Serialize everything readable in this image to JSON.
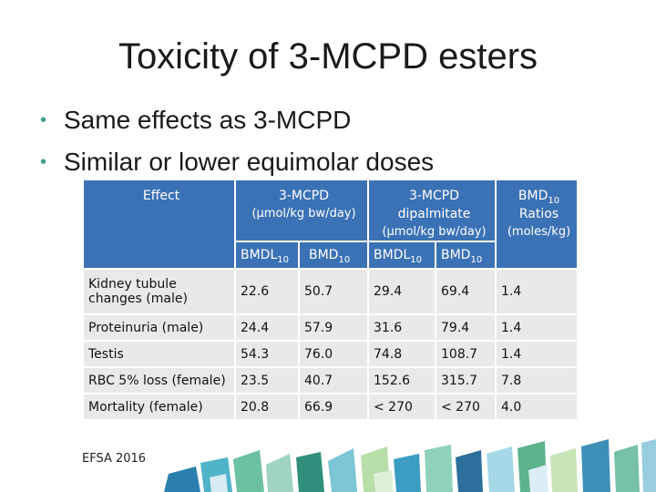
{
  "slide": {
    "title": "Toxicity of 3-MCPD esters",
    "bullets": [
      "Same effects as 3-MCPD",
      "Similar or lower equimolar doses"
    ],
    "footer": "EFSA 2016"
  },
  "table": {
    "header": {
      "effect": "Effect",
      "mcpd": "3-MCPD",
      "mcpd_unit": "(μmol/kg bw/day)",
      "dip_line1": "3-MCPD",
      "dip_line2": "dipalmitate",
      "dip_unit": "(μmol/kg bw/day)",
      "ratio_main": "BMD",
      "ratio_sub": "10",
      "ratio_line2": "Ratios",
      "ratio_unit": "(moles/kg)",
      "bmdl": "BMDL",
      "bmd": "BMD",
      "sub10": "10"
    },
    "rows": [
      {
        "effect": "Kidney tubule changes (male)",
        "m_bmdl": "22.6",
        "m_bmd": "50.7",
        "d_bmdl": "29.4",
        "d_bmd": "69.4",
        "ratio": "1.4"
      },
      {
        "effect": "Proteinuria (male)",
        "m_bmdl": "24.4",
        "m_bmd": "57.9",
        "d_bmdl": "31.6",
        "d_bmd": "79.4",
        "ratio": "1.4"
      },
      {
        "effect": "Testis",
        "m_bmdl": "54.3",
        "m_bmd": "76.0",
        "d_bmdl": "74.8",
        "d_bmd": "108.7",
        "ratio": "1.4"
      },
      {
        "effect": "RBC 5% loss (female)",
        "m_bmdl": "23.5",
        "m_bmd": "40.7",
        "d_bmdl": "152.6",
        "d_bmd": "315.7",
        "ratio": "7.8"
      },
      {
        "effect": "Mortality (female)",
        "m_bmdl": "20.8",
        "m_bmd": "66.9",
        "d_bmdl": "< 270",
        "d_bmd": "< 270",
        "ratio": "4.0"
      }
    ]
  },
  "colors": {
    "header_blue": "#3b72b5",
    "cell_gray": "#e9e9e9",
    "accent_teal": "#3f9f8f"
  }
}
